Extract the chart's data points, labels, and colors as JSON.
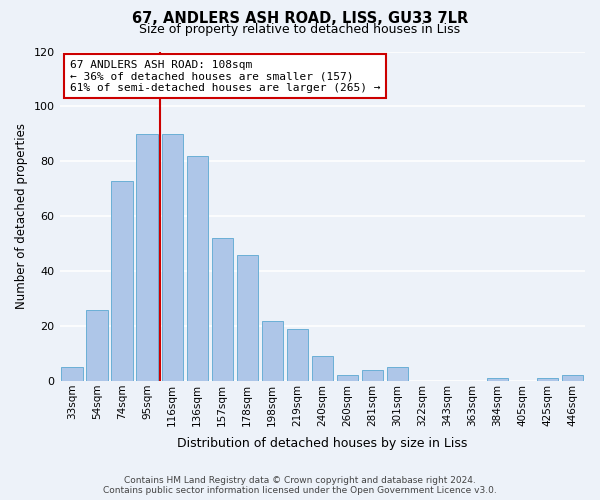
{
  "title": "67, ANDLERS ASH ROAD, LISS, GU33 7LR",
  "subtitle": "Size of property relative to detached houses in Liss",
  "xlabel": "Distribution of detached houses by size in Liss",
  "ylabel": "Number of detached properties",
  "bar_labels": [
    "33sqm",
    "54sqm",
    "74sqm",
    "95sqm",
    "116sqm",
    "136sqm",
    "157sqm",
    "178sqm",
    "198sqm",
    "219sqm",
    "240sqm",
    "260sqm",
    "281sqm",
    "301sqm",
    "322sqm",
    "343sqm",
    "363sqm",
    "384sqm",
    "405sqm",
    "425sqm",
    "446sqm"
  ],
  "bar_values": [
    5,
    26,
    73,
    90,
    90,
    82,
    52,
    46,
    22,
    19,
    9,
    2,
    4,
    5,
    0,
    0,
    0,
    1,
    0,
    1,
    2
  ],
  "bar_color": "#aec6e8",
  "bar_edge_color": "#6aafd6",
  "reference_line_x": 4.5,
  "reference_line_color": "#cc0000",
  "ylim": [
    0,
    120
  ],
  "yticks": [
    0,
    20,
    40,
    60,
    80,
    100,
    120
  ],
  "annotation_title": "67 ANDLERS ASH ROAD: 108sqm",
  "annotation_line1": "← 36% of detached houses are smaller (157)",
  "annotation_line2": "61% of semi-detached houses are larger (265) →",
  "annotation_box_color": "#ffffff",
  "annotation_box_edge_color": "#cc0000",
  "footer_line1": "Contains HM Land Registry data © Crown copyright and database right 2024.",
  "footer_line2": "Contains public sector information licensed under the Open Government Licence v3.0.",
  "background_color": "#edf2f9",
  "grid_color": "#ffffff"
}
